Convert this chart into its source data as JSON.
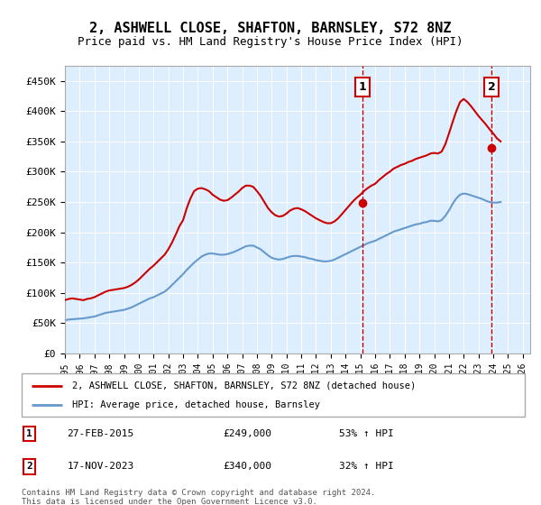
{
  "title": "2, ASHWELL CLOSE, SHAFTON, BARNSLEY, S72 8NZ",
  "subtitle": "Price paid vs. HM Land Registry's House Price Index (HPI)",
  "legend_line1": "2, ASHWELL CLOSE, SHAFTON, BARNSLEY, S72 8NZ (detached house)",
  "legend_line2": "HPI: Average price, detached house, Barnsley",
  "annotation1_date": "27-FEB-2015",
  "annotation1_price": "£249,000",
  "annotation1_hpi": "53% ↑ HPI",
  "annotation2_date": "17-NOV-2023",
  "annotation2_price": "£340,000",
  "annotation2_hpi": "32% ↑ HPI",
  "footer": "Contains HM Land Registry data © Crown copyright and database right 2024.\nThis data is licensed under the Open Government Licence v3.0.",
  "red_color": "#cc0000",
  "blue_color": "#6699cc",
  "background_color": "#ddeeff",
  "ylim": [
    0,
    475000
  ],
  "xlim_start": 1995.0,
  "xlim_end": 2026.5,
  "hatch_start": 2024.5,
  "sale1_x": 2015.16,
  "sale1_y": 249000,
  "sale2_x": 2023.88,
  "sale2_y": 340000,
  "hpi_years": [
    1995.0,
    1995.25,
    1995.5,
    1995.75,
    1996.0,
    1996.25,
    1996.5,
    1996.75,
    1997.0,
    1997.25,
    1997.5,
    1997.75,
    1998.0,
    1998.25,
    1998.5,
    1998.75,
    1999.0,
    1999.25,
    1999.5,
    1999.75,
    2000.0,
    2000.25,
    2000.5,
    2000.75,
    2001.0,
    2001.25,
    2001.5,
    2001.75,
    2002.0,
    2002.25,
    2002.5,
    2002.75,
    2003.0,
    2003.25,
    2003.5,
    2003.75,
    2004.0,
    2004.25,
    2004.5,
    2004.75,
    2005.0,
    2005.25,
    2005.5,
    2005.75,
    2006.0,
    2006.25,
    2006.5,
    2006.75,
    2007.0,
    2007.25,
    2007.5,
    2007.75,
    2008.0,
    2008.25,
    2008.5,
    2008.75,
    2009.0,
    2009.25,
    2009.5,
    2009.75,
    2010.0,
    2010.25,
    2010.5,
    2010.75,
    2011.0,
    2011.25,
    2011.5,
    2011.75,
    2012.0,
    2012.25,
    2012.5,
    2012.75,
    2013.0,
    2013.25,
    2013.5,
    2013.75,
    2014.0,
    2014.25,
    2014.5,
    2014.75,
    2015.0,
    2015.25,
    2015.5,
    2015.75,
    2016.0,
    2016.25,
    2016.5,
    2016.75,
    2017.0,
    2017.25,
    2017.5,
    2017.75,
    2018.0,
    2018.25,
    2018.5,
    2018.75,
    2019.0,
    2019.25,
    2019.5,
    2019.75,
    2020.0,
    2020.25,
    2020.5,
    2020.75,
    2021.0,
    2021.25,
    2021.5,
    2021.75,
    2022.0,
    2022.25,
    2022.5,
    2022.75,
    2023.0,
    2023.25,
    2023.5,
    2023.75,
    2024.0,
    2024.25,
    2024.5
  ],
  "hpi_values": [
    55000,
    56000,
    56500,
    57000,
    57500,
    58000,
    59000,
    60000,
    61000,
    63000,
    65000,
    67000,
    68000,
    69000,
    70000,
    71000,
    72000,
    74000,
    76000,
    79000,
    82000,
    85000,
    88000,
    91000,
    93000,
    96000,
    99000,
    102000,
    107000,
    113000,
    119000,
    125000,
    131000,
    138000,
    144000,
    150000,
    155000,
    160000,
    163000,
    165000,
    165000,
    164000,
    163000,
    163000,
    164000,
    166000,
    168000,
    171000,
    174000,
    177000,
    178000,
    178000,
    175000,
    172000,
    167000,
    162000,
    158000,
    156000,
    155000,
    156000,
    158000,
    160000,
    161000,
    161000,
    160000,
    159000,
    157000,
    156000,
    154000,
    153000,
    152000,
    152000,
    153000,
    155000,
    158000,
    161000,
    164000,
    167000,
    170000,
    173000,
    176000,
    179000,
    182000,
    184000,
    186000,
    189000,
    192000,
    195000,
    198000,
    201000,
    203000,
    205000,
    207000,
    209000,
    211000,
    213000,
    214000,
    216000,
    217000,
    219000,
    219000,
    218000,
    220000,
    227000,
    236000,
    247000,
    256000,
    262000,
    264000,
    263000,
    261000,
    259000,
    257000,
    255000,
    252000,
    250000,
    249000,
    249000,
    250000
  ],
  "red_years": [
    1995.0,
    1995.25,
    1995.5,
    1995.75,
    1996.0,
    1996.25,
    1996.5,
    1996.75,
    1997.0,
    1997.25,
    1997.5,
    1997.75,
    1998.0,
    1998.25,
    1998.5,
    1998.75,
    1999.0,
    1999.25,
    1999.5,
    1999.75,
    2000.0,
    2000.25,
    2000.5,
    2000.75,
    2001.0,
    2001.25,
    2001.5,
    2001.75,
    2002.0,
    2002.25,
    2002.5,
    2002.75,
    2003.0,
    2003.25,
    2003.5,
    2003.75,
    2004.0,
    2004.25,
    2004.5,
    2004.75,
    2005.0,
    2005.25,
    2005.5,
    2005.75,
    2006.0,
    2006.25,
    2006.5,
    2006.75,
    2007.0,
    2007.25,
    2007.5,
    2007.75,
    2008.0,
    2008.25,
    2008.5,
    2008.75,
    2009.0,
    2009.25,
    2009.5,
    2009.75,
    2010.0,
    2010.25,
    2010.5,
    2010.75,
    2011.0,
    2011.25,
    2011.5,
    2011.75,
    2012.0,
    2012.25,
    2012.5,
    2012.75,
    2013.0,
    2013.25,
    2013.5,
    2013.75,
    2014.0,
    2014.25,
    2014.5,
    2014.75,
    2015.0,
    2015.25,
    2015.5,
    2015.75,
    2016.0,
    2016.25,
    2016.5,
    2016.75,
    2017.0,
    2017.25,
    2017.5,
    2017.75,
    2018.0,
    2018.25,
    2018.5,
    2018.75,
    2019.0,
    2019.25,
    2019.5,
    2019.75,
    2020.0,
    2020.25,
    2020.5,
    2020.75,
    2021.0,
    2021.25,
    2021.5,
    2021.75,
    2022.0,
    2022.25,
    2022.5,
    2022.75,
    2023.0,
    2023.25,
    2023.5,
    2023.75,
    2024.0,
    2024.25,
    2024.5
  ],
  "red_values": [
    88000,
    90000,
    91000,
    90000,
    89000,
    88000,
    90000,
    91000,
    93000,
    96000,
    99000,
    102000,
    104000,
    105000,
    106000,
    107000,
    108000,
    110000,
    113000,
    117000,
    122000,
    128000,
    134000,
    140000,
    145000,
    151000,
    157000,
    163000,
    172000,
    183000,
    196000,
    210000,
    220000,
    240000,
    256000,
    268000,
    272000,
    273000,
    271000,
    268000,
    262000,
    258000,
    254000,
    252000,
    253000,
    257000,
    262000,
    267000,
    273000,
    277000,
    277000,
    275000,
    268000,
    260000,
    250000,
    240000,
    233000,
    228000,
    226000,
    227000,
    231000,
    236000,
    239000,
    240000,
    238000,
    235000,
    231000,
    227000,
    223000,
    220000,
    217000,
    215000,
    215000,
    218000,
    223000,
    230000,
    237000,
    244000,
    251000,
    257000,
    262000,
    268000,
    273000,
    277000,
    280000,
    286000,
    291000,
    296000,
    300000,
    305000,
    308000,
    311000,
    313000,
    316000,
    318000,
    321000,
    323000,
    325000,
    327000,
    330000,
    331000,
    330000,
    333000,
    345000,
    363000,
    382000,
    400000,
    415000,
    420000,
    415000,
    408000,
    400000,
    392000,
    385000,
    378000,
    370000,
    363000,
    355000,
    350000
  ],
  "xticks": [
    1995,
    1996,
    1997,
    1998,
    1999,
    2000,
    2001,
    2002,
    2003,
    2004,
    2005,
    2006,
    2007,
    2008,
    2009,
    2010,
    2011,
    2012,
    2013,
    2014,
    2015,
    2016,
    2017,
    2018,
    2019,
    2020,
    2021,
    2022,
    2023,
    2024,
    2025,
    2026
  ],
  "yticks": [
    0,
    50000,
    100000,
    150000,
    200000,
    250000,
    300000,
    350000,
    400000,
    450000
  ]
}
